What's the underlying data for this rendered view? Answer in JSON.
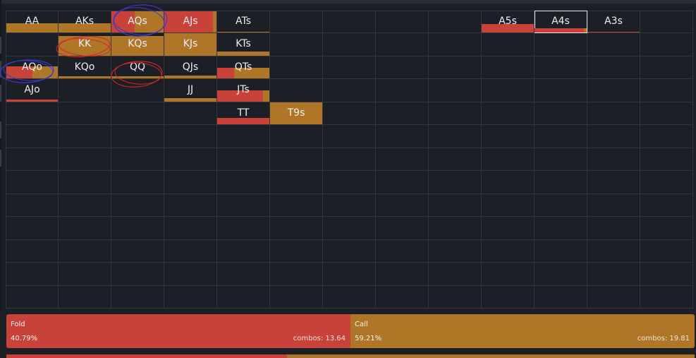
{
  "colors": {
    "background": "#1d1f26",
    "fold": "#c8423a",
    "call": "#b07628",
    "grid_line": "#33363d",
    "text": "#eceef1",
    "annotation_blue": "#3a3ac8",
    "annotation_red": "#d42828"
  },
  "range_grid": {
    "rows": 13,
    "cols": 13,
    "selected_hand": "A4s",
    "hands": [
      {
        "label": "AA",
        "row": 0,
        "col": 0,
        "fill_height": 0.45,
        "fill_width": 1.0,
        "fold": 0.0,
        "call": 1.0
      },
      {
        "label": "AKs",
        "row": 0,
        "col": 1,
        "fill_height": 0.45,
        "fill_width": 1.0,
        "fold": 0.0,
        "call": 1.0
      },
      {
        "label": "AQs",
        "row": 0,
        "col": 2,
        "fill_height": 1.0,
        "fill_width": 1.0,
        "fold": 0.45,
        "call": 0.55
      },
      {
        "label": "AJs",
        "row": 0,
        "col": 3,
        "fill_height": 1.0,
        "fill_width": 1.0,
        "fold": 0.93,
        "call": 0.07
      },
      {
        "label": "ATs",
        "row": 0,
        "col": 4,
        "fill_height": 0.06,
        "fill_width": 1.0,
        "fold": 0.0,
        "call": 1.0
      },
      {
        "label": "A5s",
        "row": 0,
        "col": 9,
        "fill_height": 0.4,
        "fill_width": 1.0,
        "fold": 1.0,
        "call": 0.0
      },
      {
        "label": "A4s",
        "row": 0,
        "col": 10,
        "fill_height": 0.2,
        "fill_width": 1.0,
        "fold": 0.95,
        "call": 0.05
      },
      {
        "label": "A3s",
        "row": 0,
        "col": 11,
        "fill_height": 0.05,
        "fill_width": 1.0,
        "fold": 1.0,
        "call": 0.0
      },
      {
        "label": "KK",
        "row": 1,
        "col": 1,
        "fill_height": 0.9,
        "fill_width": 1.0,
        "fold": 0.0,
        "call": 1.0
      },
      {
        "label": "KQs",
        "row": 1,
        "col": 2,
        "fill_height": 0.9,
        "fill_width": 1.0,
        "fold": 0.0,
        "call": 1.0
      },
      {
        "label": "KJs",
        "row": 1,
        "col": 3,
        "fill_height": 1.0,
        "fill_width": 1.0,
        "fold": 0.0,
        "call": 1.0
      },
      {
        "label": "KTs",
        "row": 1,
        "col": 4,
        "fill_height": 0.2,
        "fill_width": 1.0,
        "fold": 0.0,
        "call": 1.0
      },
      {
        "label": "AQo",
        "row": 2,
        "col": 0,
        "fill_height": 0.55,
        "fill_width": 1.0,
        "fold": 0.5,
        "call": 0.5
      },
      {
        "label": "KQo",
        "row": 2,
        "col": 1,
        "fill_height": 0.1,
        "fill_width": 1.0,
        "fold": 0.0,
        "call": 1.0
      },
      {
        "label": "QQ",
        "row": 2,
        "col": 2,
        "fill_height": 0.1,
        "fill_width": 1.0,
        "fold": 0.0,
        "call": 1.0
      },
      {
        "label": "QJs",
        "row": 2,
        "col": 3,
        "fill_height": 0.15,
        "fill_width": 1.0,
        "fold": 0.0,
        "call": 1.0
      },
      {
        "label": "QTs",
        "row": 2,
        "col": 4,
        "fill_height": 0.5,
        "fill_width": 1.0,
        "fold": 0.32,
        "call": 0.68
      },
      {
        "label": "AJo",
        "row": 3,
        "col": 0,
        "fill_height": 0.1,
        "fill_width": 1.0,
        "fold": 1.0,
        "call": 0.0
      },
      {
        "label": "JJ",
        "row": 3,
        "col": 3,
        "fill_height": 0.15,
        "fill_width": 1.0,
        "fold": 0.0,
        "call": 1.0
      },
      {
        "label": "JTs",
        "row": 3,
        "col": 4,
        "fill_height": 0.5,
        "fill_width": 1.0,
        "fold": 0.88,
        "call": 0.12
      },
      {
        "label": "TT",
        "row": 4,
        "col": 4,
        "fill_height": 0.3,
        "fill_width": 1.0,
        "fold": 1.0,
        "call": 0.0
      },
      {
        "label": "T9s",
        "row": 4,
        "col": 5,
        "fill_height": 1.0,
        "fill_width": 1.0,
        "fold": 0.0,
        "call": 1.0
      }
    ]
  },
  "summary": {
    "fold": {
      "name": "Fold",
      "percent": "40.79%",
      "combos": "combos: 13.64",
      "share": 0.5
    },
    "call": {
      "name": "Call",
      "percent": "59.21%",
      "combos": "combos: 19.81",
      "share": 0.5
    }
  },
  "bottom_bar": {
    "fold_share": 0.408,
    "call_share": 0.592
  }
}
